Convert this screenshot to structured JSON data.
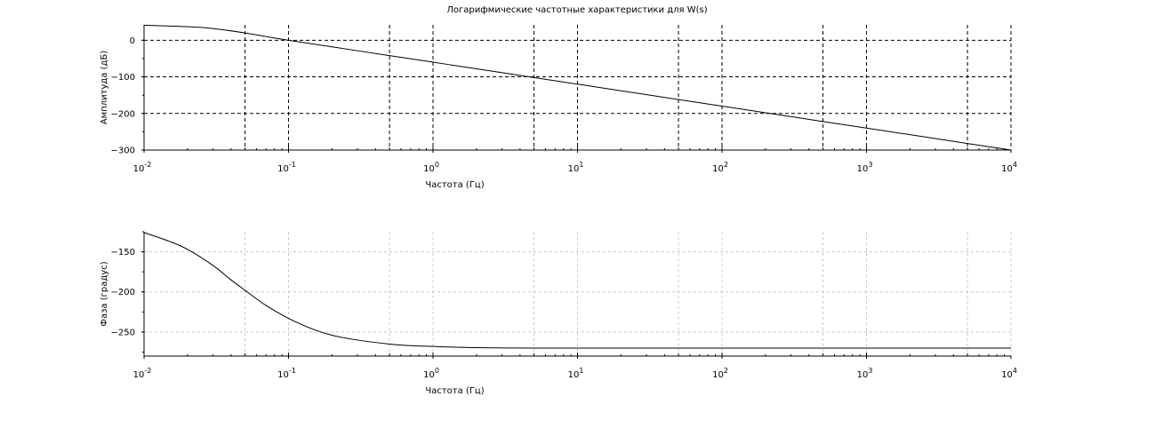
{
  "title": "Логарифмические частотные характеристики для W(s)",
  "chart_data": [
    {
      "type": "line",
      "xscale": "log",
      "xlim": [
        0.01,
        10000
      ],
      "ylim": [
        -300,
        42
      ],
      "xlabel": "Частота (Гц)",
      "ylabel": "Амплитуда (дБ)",
      "grid": true,
      "x_ticks": [
        0.01,
        0.1,
        1,
        10,
        100,
        1000,
        10000
      ],
      "x_tick_labels": [
        {
          "base": "10",
          "exp": "-2"
        },
        {
          "base": "10",
          "exp": "-1"
        },
        {
          "base": "10",
          "exp": "0"
        },
        {
          "base": "10",
          "exp": "1"
        },
        {
          "base": "10",
          "exp": "2"
        },
        {
          "base": "10",
          "exp": "3"
        },
        {
          "base": "10",
          "exp": "4"
        }
      ],
      "x_grid": [
        0.05,
        0.1,
        0.5,
        1,
        5,
        10,
        50,
        100,
        500,
        1000,
        5000,
        10000
      ],
      "y_ticks": [
        0,
        -100,
        -200,
        -300
      ],
      "y_tick_labels": [
        "0",
        "−100",
        "−200",
        "−300"
      ],
      "y_grid": [
        0,
        -100,
        -200
      ],
      "series": [
        {
          "x": [
            0.01,
            0.02,
            0.03,
            0.05,
            0.07,
            0.1,
            0.2,
            0.5,
            1,
            2,
            5,
            10,
            20,
            50,
            100,
            200,
            500,
            1000,
            2000,
            5000,
            10000
          ],
          "y": [
            41,
            37,
            32,
            20,
            10,
            0,
            -18,
            -42,
            -60,
            -78,
            -102,
            -120,
            -138,
            -162,
            -180,
            -198,
            -222,
            -240,
            -258,
            -282,
            -300
          ]
        }
      ]
    },
    {
      "type": "line",
      "xscale": "log",
      "xlim": [
        0.01,
        10000
      ],
      "ylim": [
        -280,
        -125
      ],
      "xlabel": "Частота (Гц)",
      "ylabel": "Фаза (градус)",
      "grid": true,
      "x_ticks": [
        0.01,
        0.1,
        1,
        10,
        100,
        1000,
        10000
      ],
      "x_tick_labels": [
        {
          "base": "10",
          "exp": "-2"
        },
        {
          "base": "10",
          "exp": "-1"
        },
        {
          "base": "10",
          "exp": "0"
        },
        {
          "base": "10",
          "exp": "1"
        },
        {
          "base": "10",
          "exp": "2"
        },
        {
          "base": "10",
          "exp": "3"
        },
        {
          "base": "10",
          "exp": "4"
        }
      ],
      "x_grid": [
        0.05,
        0.1,
        0.5,
        1,
        5,
        10,
        50,
        100,
        500,
        1000,
        5000,
        10000
      ],
      "y_ticks": [
        -150,
        -200,
        -250
      ],
      "y_tick_labels": [
        "−150",
        "−200",
        "−250"
      ],
      "y_grid": [
        -150,
        -200,
        -250
      ],
      "series": [
        {
          "x": [
            0.01,
            0.015,
            0.02,
            0.03,
            0.04,
            0.05,
            0.07,
            0.1,
            0.15,
            0.2,
            0.3,
            0.5,
            0.7,
            1,
            2,
            5,
            10,
            100,
            1000,
            10000
          ],
          "y": [
            -126,
            -137,
            -147,
            -167,
            -185,
            -198,
            -217,
            -233,
            -247,
            -254,
            -260,
            -265,
            -267,
            -268,
            -269.5,
            -270,
            -270,
            -270,
            -270,
            -270
          ]
        }
      ]
    }
  ]
}
